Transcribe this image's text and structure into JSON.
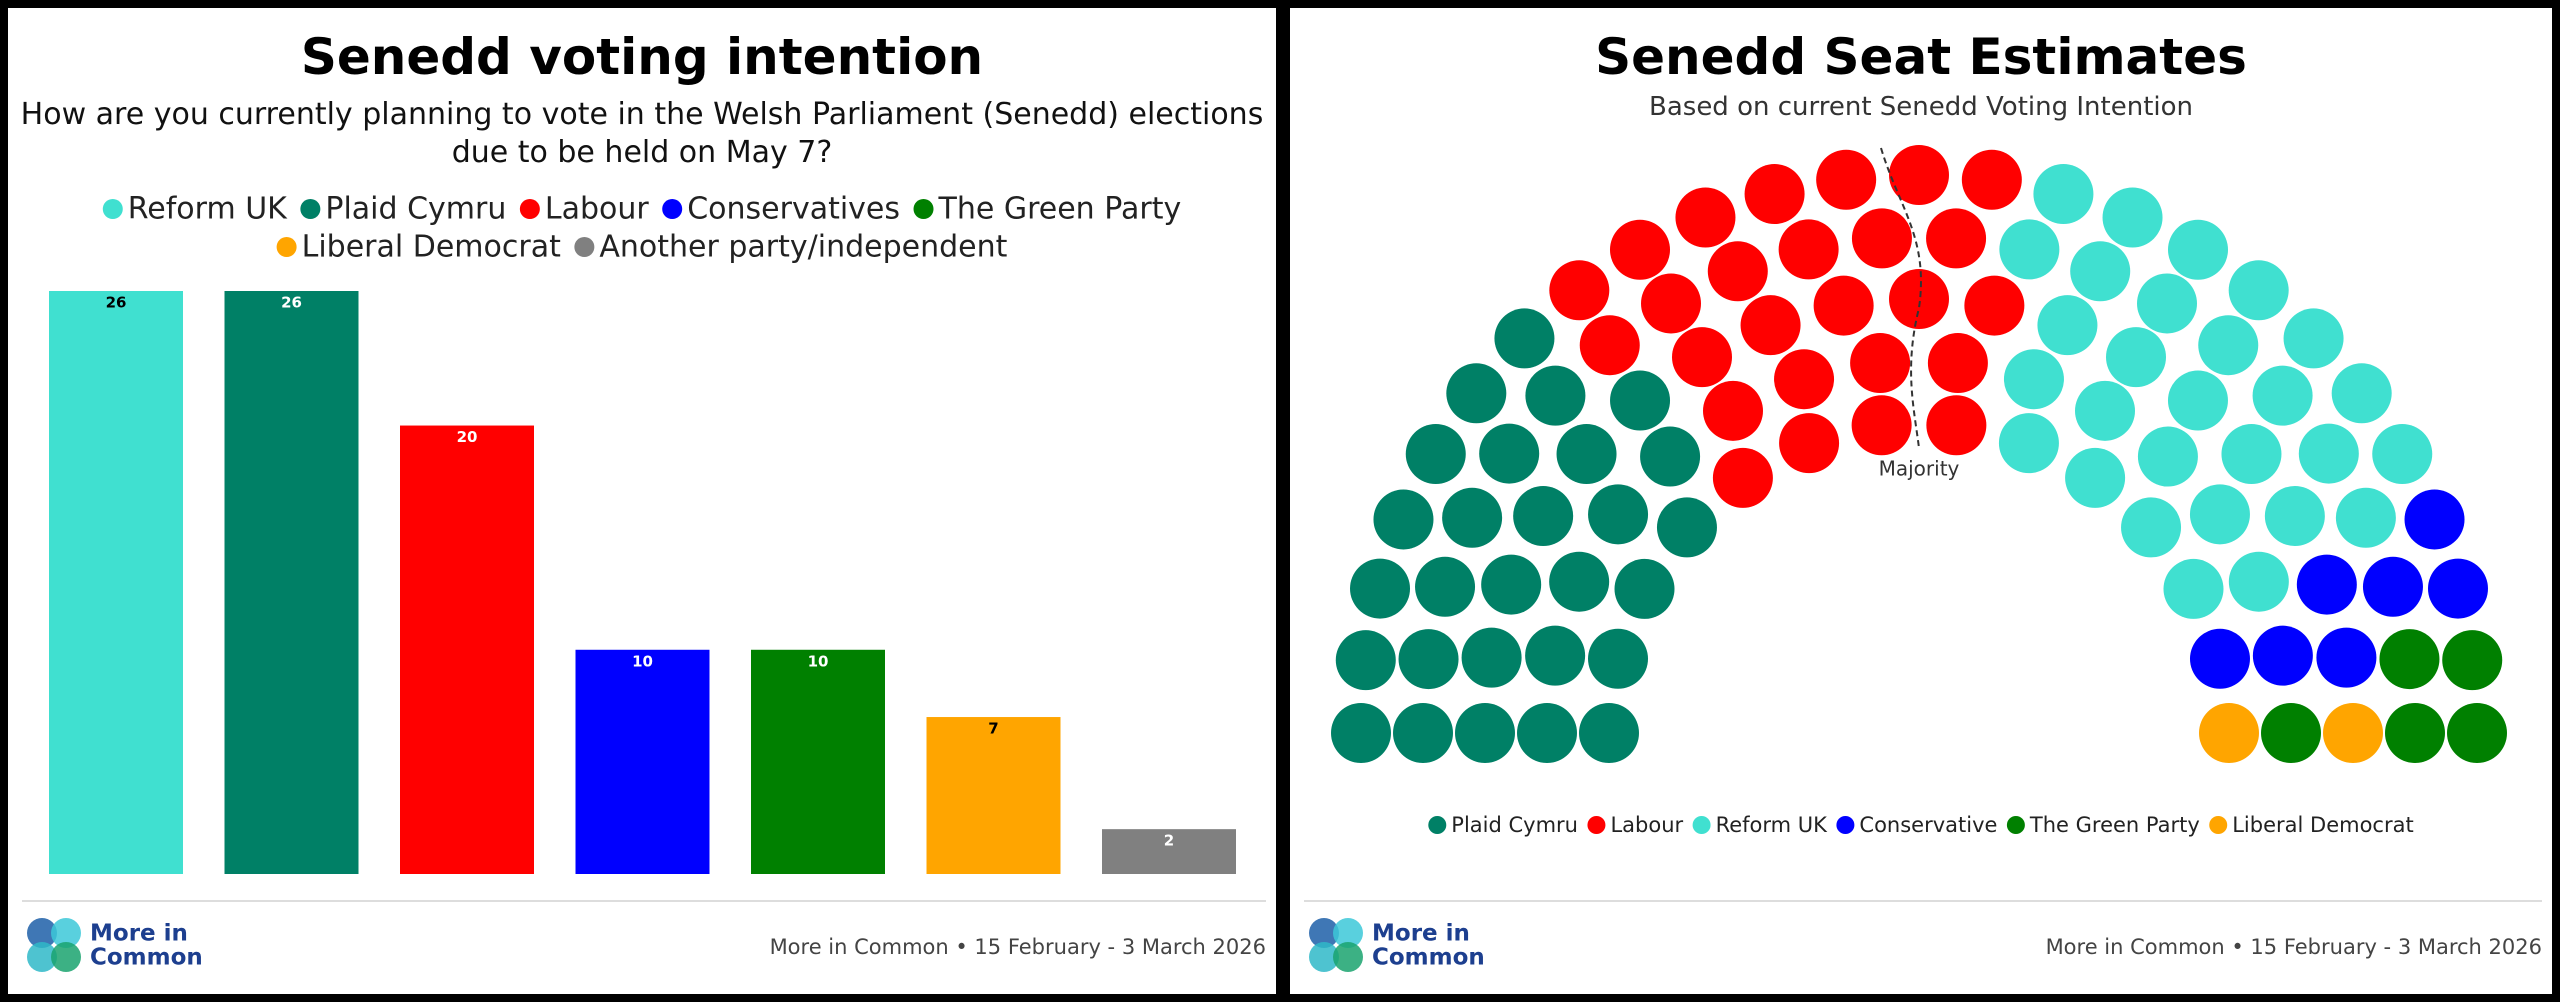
{
  "chart_data": [
    {
      "type": "bar",
      "title": "Senedd voting intention",
      "subtitle": "How are you currently planning to vote in the Welsh Parliament (Senedd) elections due to be held on May 7?",
      "categories": [
        "Reform UK",
        "Plaid Cymru",
        "Labour",
        "Conservatives",
        "The Green Party",
        "Liberal Democrat",
        "Another party/independent"
      ],
      "values": [
        26,
        26,
        20,
        10,
        10,
        7,
        2
      ],
      "colors": [
        "#40e0d0",
        "#008066",
        "#ff0000",
        "#0000ff",
        "#008000",
        "#ffa500",
        "#808080"
      ]
    },
    {
      "type": "parliament",
      "title": "Senedd Seat Estimates",
      "subtitle": "Based on current Senedd Voting Intention",
      "categories": [
        "Plaid Cymru",
        "Labour",
        "Reform UK",
        "Conservative",
        "The Green Party",
        "Liberal Democrat"
      ],
      "values": [
        28,
        26,
        28,
        7,
        5,
        2
      ],
      "colors": [
        "#008066",
        "#ff0000",
        "#40e0d0",
        "#0000ff",
        "#008000",
        "#ffa500"
      ],
      "majority_label": "Majority"
    }
  ],
  "footer": {
    "logo": [
      "More in",
      "Common"
    ],
    "source": "More in Common • 15 February - 3 March 2026"
  }
}
